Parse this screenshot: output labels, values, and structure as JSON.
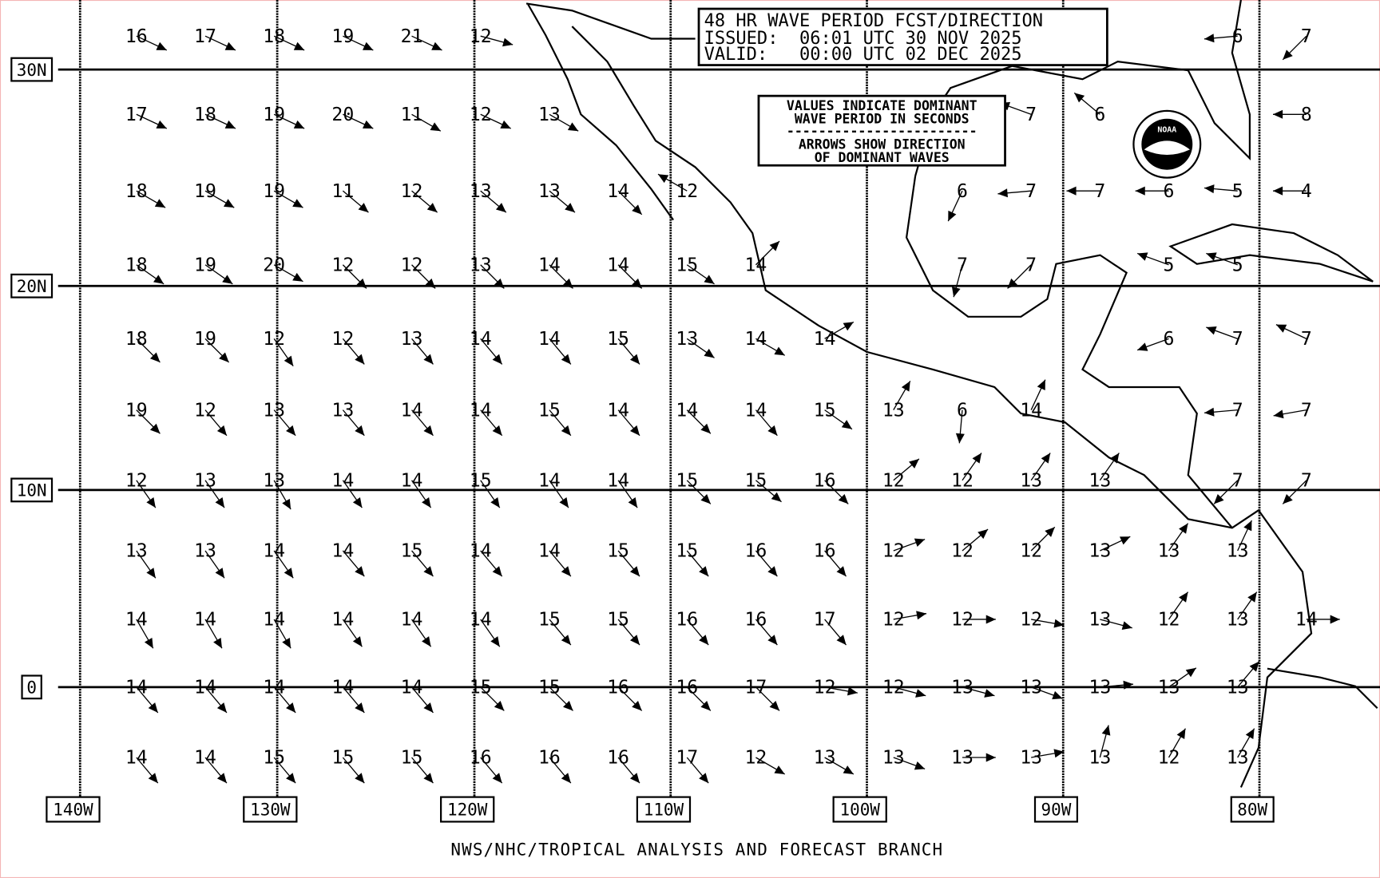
{
  "header": {
    "title": "48 HR WAVE PERIOD FCST/DIRECTION",
    "issued": "ISSUED:  06:01 UTC 30 NOV 2025",
    "valid": "VALID:   00:00 UTC 02 DEC 2025"
  },
  "legend": {
    "line1": "VALUES INDICATE DOMINANT",
    "line2": "WAVE PERIOD IN SECONDS",
    "divider": "------------------------",
    "line3": "ARROWS SHOW DIRECTION",
    "line4": "OF DOMINANT WAVES"
  },
  "footer": "NWS/NHC/TROPICAL ANALYSIS AND FORECAST BRANCH",
  "logo": "NOAA",
  "colors": {
    "ink": "#000000",
    "background": "#ffffff",
    "border": "#f4b6b6"
  },
  "lat_labels": [
    "30N",
    "20N",
    "10N",
    "0"
  ],
  "lon_labels": [
    "140W",
    "130W",
    "120W",
    "110W",
    "100W",
    "90W",
    "80W"
  ],
  "grid": {
    "units": "seconds",
    "direction_units": "degrees toward (0=N, 90=E)",
    "rows": [
      {
        "values": [
          16,
          17,
          18,
          19,
          21,
          12,
          null,
          null,
          null,
          null,
          null,
          null,
          null,
          null,
          null,
          null,
          6,
          7
        ],
        "dirs": [
          115,
          115,
          115,
          115,
          115,
          105,
          null,
          null,
          null,
          null,
          null,
          null,
          null,
          null,
          null,
          null,
          265,
          225
        ]
      },
      {
        "values": [
          17,
          18,
          19,
          20,
          11,
          12,
          13,
          null,
          null,
          null,
          null,
          null,
          null,
          7,
          6,
          null,
          null,
          8
        ],
        "dirs": [
          115,
          115,
          115,
          115,
          120,
          115,
          120,
          null,
          null,
          null,
          null,
          null,
          null,
          290,
          310,
          null,
          null,
          270
        ]
      },
      {
        "values": [
          18,
          19,
          19,
          11,
          12,
          13,
          13,
          14,
          12,
          null,
          null,
          null,
          6,
          7,
          7,
          6,
          5,
          4
        ],
        "dirs": [
          120,
          120,
          120,
          130,
          130,
          130,
          130,
          135,
          300,
          null,
          null,
          null,
          205,
          265,
          270,
          270,
          275,
          270
        ]
      },
      {
        "values": [
          18,
          19,
          20,
          12,
          12,
          13,
          14,
          14,
          15,
          14,
          null,
          null,
          7,
          7,
          null,
          5,
          5,
          null
        ],
        "dirs": [
          125,
          125,
          120,
          135,
          135,
          135,
          135,
          135,
          125,
          45,
          null,
          null,
          195,
          225,
          null,
          290,
          290,
          null
        ]
      },
      {
        "values": [
          18,
          19,
          12,
          12,
          13,
          14,
          14,
          15,
          13,
          14,
          14,
          null,
          null,
          null,
          null,
          6,
          7,
          7
        ],
        "dirs": [
          135,
          135,
          145,
          140,
          140,
          140,
          140,
          140,
          125,
          120,
          60,
          null,
          null,
          null,
          null,
          250,
          290,
          295
        ]
      },
      {
        "values": [
          19,
          12,
          13,
          13,
          14,
          14,
          15,
          14,
          14,
          14,
          15,
          13,
          6,
          14,
          null,
          null,
          7,
          7
        ],
        "dirs": [
          135,
          140,
          140,
          140,
          140,
          140,
          140,
          140,
          135,
          140,
          125,
          30,
          185,
          25,
          null,
          null,
          265,
          260
        ]
      },
      {
        "values": [
          12,
          13,
          13,
          14,
          14,
          15,
          14,
          14,
          15,
          15,
          16,
          12,
          12,
          13,
          13,
          null,
          7,
          7
        ],
        "dirs": [
          145,
          145,
          150,
          145,
          145,
          145,
          145,
          145,
          135,
          130,
          135,
          50,
          35,
          35,
          35,
          null,
          225,
          225
        ]
      },
      {
        "values": [
          13,
          13,
          14,
          14,
          15,
          14,
          14,
          15,
          15,
          16,
          16,
          12,
          12,
          12,
          13,
          13,
          13,
          null
        ],
        "dirs": [
          145,
          145,
          145,
          140,
          140,
          140,
          140,
          140,
          140,
          140,
          140,
          70,
          50,
          45,
          65,
          35,
          25,
          null
        ]
      },
      {
        "values": [
          14,
          14,
          14,
          14,
          14,
          14,
          15,
          15,
          16,
          16,
          17,
          12,
          12,
          12,
          13,
          12,
          13,
          14
        ],
        "dirs": [
          150,
          150,
          150,
          145,
          145,
          145,
          140,
          140,
          140,
          140,
          140,
          80,
          90,
          100,
          105,
          35,
          35,
          90
        ]
      },
      {
        "values": [
          14,
          14,
          14,
          14,
          14,
          15,
          15,
          16,
          16,
          17,
          12,
          12,
          13,
          13,
          13,
          13,
          13,
          null
        ],
        "dirs": [
          140,
          140,
          140,
          140,
          140,
          135,
          135,
          135,
          135,
          135,
          100,
          105,
          105,
          110,
          85,
          55,
          40,
          null
        ]
      },
      {
        "values": [
          14,
          14,
          15,
          15,
          15,
          16,
          16,
          16,
          17,
          12,
          13,
          13,
          13,
          13,
          13,
          12,
          13,
          null
        ],
        "dirs": [
          140,
          140,
          140,
          140,
          140,
          140,
          140,
          140,
          140,
          120,
          120,
          110,
          90,
          80,
          15,
          30,
          30,
          null
        ]
      }
    ]
  }
}
